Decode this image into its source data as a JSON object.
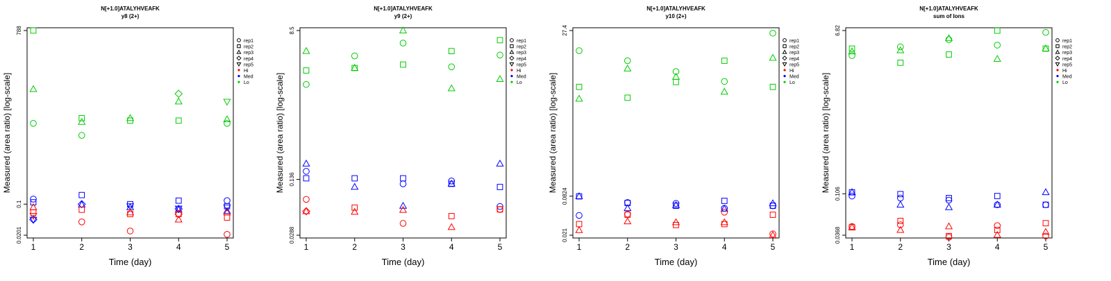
{
  "chart_data": [
    {
      "type": "scatter",
      "title": "N[+1.0]ATALYHVEAFK",
      "subtitle": "y8 (2+)",
      "xlabel": "Time (day)",
      "ylabel": "Measured (area ratio) [log-scale]",
      "x_ticks": [
        "1",
        "2",
        "3",
        "4",
        "5"
      ],
      "y_ticks": [
        {
          "value": 788,
          "label": "788"
        },
        {
          "value": 0.1,
          "label": "0.1"
        },
        {
          "value": 0.0201,
          "label": "0.0201"
        }
      ],
      "ylim": [
        0.0201,
        788
      ],
      "log_y": true,
      "series": [
        {
          "group": "Lo",
          "rep": "rep1",
          "points": [
            [
              1,
              6.5
            ],
            [
              2,
              3.5
            ],
            [
              5,
              6.5
            ]
          ]
        },
        {
          "group": "Lo",
          "rep": "rep2",
          "points": [
            [
              1,
              788
            ],
            [
              2,
              8.5
            ],
            [
              3,
              7.5
            ],
            [
              4,
              7.5
            ]
          ]
        },
        {
          "group": "Lo",
          "rep": "rep3",
          "points": [
            [
              1,
              38
            ],
            [
              2,
              7
            ],
            [
              3,
              8.5
            ],
            [
              4,
              20
            ],
            [
              5,
              8
            ]
          ]
        },
        {
          "group": "Lo",
          "rep": "rep4",
          "points": [
            [
              4,
              30
            ]
          ]
        },
        {
          "group": "Lo",
          "rep": "rep5",
          "points": [
            [
              5,
              20
            ]
          ]
        },
        {
          "group": "Med",
          "rep": "rep1",
          "points": [
            [
              1,
              0.13
            ],
            [
              5,
              0.12
            ]
          ]
        },
        {
          "group": "Med",
          "rep": "rep2",
          "points": [
            [
              1,
              0.11
            ],
            [
              2,
              0.16
            ],
            [
              3,
              0.1
            ],
            [
              4,
              0.12
            ],
            [
              5,
              0.09
            ]
          ]
        },
        {
          "group": "Med",
          "rep": "rep3",
          "points": [
            [
              2,
              0.097
            ],
            [
              3,
              0.085
            ],
            [
              4,
              0.075
            ],
            [
              5,
              0.07
            ]
          ]
        },
        {
          "group": "Med",
          "rep": "rep4",
          "points": [
            [
              1,
              0.045
            ],
            [
              2,
              0.1
            ],
            [
              4,
              0.078
            ]
          ]
        },
        {
          "group": "Med",
          "rep": "rep5",
          "points": [
            [
              1,
              0.045
            ],
            [
              3,
              0.09
            ],
            [
              4,
              0.08
            ],
            [
              5,
              0.085
            ]
          ]
        },
        {
          "group": "Hi",
          "rep": "rep1",
          "points": [
            [
              2,
              0.04
            ],
            [
              3,
              0.025
            ],
            [
              5,
              0.021
            ]
          ]
        },
        {
          "group": "Hi",
          "rep": "rep2",
          "points": [
            [
              1,
              0.065
            ],
            [
              2,
              0.075
            ],
            [
              3,
              0.06
            ],
            [
              4,
              0.06
            ],
            [
              5,
              0.05
            ]
          ]
        },
        {
          "group": "Hi",
          "rep": "rep3",
          "points": [
            [
              1,
              0.085
            ],
            [
              3,
              0.065
            ],
            [
              4,
              0.045
            ],
            [
              5,
              0.065
            ]
          ]
        },
        {
          "group": "Hi",
          "rep": "rep4",
          "points": [
            [
              4,
              0.06
            ]
          ]
        },
        {
          "group": "Hi",
          "rep": "rep5",
          "points": [
            [
              1,
              0.055
            ]
          ]
        }
      ]
    },
    {
      "type": "scatter",
      "title": "N[+1.0]ATALYHVEAFK",
      "subtitle": "y9 (2+)",
      "xlabel": "Time (day)",
      "ylabel": "Measured (area ratio) [log-scale]",
      "x_ticks": [
        "1",
        "2",
        "3",
        "4",
        "5"
      ],
      "y_ticks": [
        {
          "value": 8.5,
          "label": "8.5"
        },
        {
          "value": 0.136,
          "label": "0.136"
        },
        {
          "value": 0.0288,
          "label": "0.0288"
        }
      ],
      "ylim": [
        0.0288,
        8.5
      ],
      "log_y": true,
      "series": [
        {
          "group": "Lo",
          "rep": "rep1",
          "points": [
            [
              1,
              1.9
            ],
            [
              2,
              4.2
            ],
            [
              3,
              6.0
            ],
            [
              4,
              3.1
            ],
            [
              5,
              4.3
            ]
          ]
        },
        {
          "group": "Lo",
          "rep": "rep2",
          "points": [
            [
              1,
              2.8
            ],
            [
              2,
              3.0
            ],
            [
              3,
              3.3
            ],
            [
              4,
              4.8
            ],
            [
              5,
              6.5
            ]
          ]
        },
        {
          "group": "Lo",
          "rep": "rep3",
          "points": [
            [
              1,
              4.8
            ],
            [
              2,
              3.0
            ],
            [
              3,
              8.5
            ],
            [
              4,
              1.7
            ],
            [
              5,
              2.2
            ]
          ]
        },
        {
          "group": "Med",
          "rep": "rep1",
          "points": [
            [
              1,
              0.17
            ],
            [
              3,
              0.12
            ],
            [
              4,
              0.13
            ],
            [
              5,
              0.064
            ]
          ]
        },
        {
          "group": "Med",
          "rep": "rep2",
          "points": [
            [
              1,
              0.14
            ],
            [
              2,
              0.14
            ],
            [
              3,
              0.14
            ],
            [
              4,
              0.12
            ],
            [
              5,
              0.11
            ]
          ]
        },
        {
          "group": "Med",
          "rep": "rep3",
          "points": [
            [
              1,
              0.21
            ],
            [
              2,
              0.11
            ],
            [
              3,
              0.065
            ],
            [
              4,
              0.12
            ],
            [
              5,
              0.21
            ]
          ]
        },
        {
          "group": "Hi",
          "rep": "rep1",
          "points": [
            [
              1,
              0.078
            ],
            [
              3,
              0.04
            ],
            [
              5,
              0.059
            ]
          ]
        },
        {
          "group": "Hi",
          "rep": "rep2",
          "points": [
            [
              2,
              0.062
            ],
            [
              4,
              0.049
            ],
            [
              5,
              0.059
            ]
          ]
        },
        {
          "group": "Hi",
          "rep": "rep3",
          "points": [
            [
              1,
              0.056
            ],
            [
              2,
              0.055
            ],
            [
              3,
              0.058
            ],
            [
              4,
              0.036
            ]
          ]
        },
        {
          "group": "Hi",
          "rep": "rep4",
          "points": [
            [
              1,
              0.056
            ]
          ]
        }
      ]
    },
    {
      "type": "scatter",
      "title": "N[+1.0]ATALYHVEAFK",
      "subtitle": "y10 (2+)",
      "xlabel": "Time (day)",
      "ylabel": "Measured (area ratio) [log-scale]",
      "x_ticks": [
        "1",
        "2",
        "3",
        "4",
        "5"
      ],
      "y_ticks": [
        {
          "value": 27.4,
          "label": "27.4"
        },
        {
          "value": 0.0824,
          "label": "0.0824"
        },
        {
          "value": 0.021,
          "label": "0.021"
        }
      ],
      "ylim": [
        0.021,
        27.4
      ],
      "log_y": true,
      "series": [
        {
          "group": "Lo",
          "rep": "rep1",
          "points": [
            [
              1,
              13.5
            ],
            [
              2,
              9.5
            ],
            [
              3,
              6.5
            ],
            [
              4,
              4.6
            ],
            [
              5,
              25
            ]
          ]
        },
        {
          "group": "Lo",
          "rep": "rep2",
          "points": [
            [
              1,
              3.8
            ],
            [
              2,
              2.6
            ],
            [
              3,
              4.5
            ],
            [
              4,
              9.5
            ],
            [
              5,
              3.8
            ]
          ]
        },
        {
          "group": "Lo",
          "rep": "rep3",
          "points": [
            [
              1,
              2.5
            ],
            [
              2,
              7.2
            ],
            [
              3,
              5.4
            ],
            [
              4,
              3.2
            ],
            [
              5,
              10.5
            ]
          ]
        },
        {
          "group": "Med",
          "rep": "rep1",
          "points": [
            [
              1,
              0.042
            ],
            [
              2,
              0.066
            ],
            [
              3,
              0.064
            ],
            [
              4,
              0.054
            ],
            [
              5,
              0.059
            ]
          ]
        },
        {
          "group": "Med",
          "rep": "rep2",
          "points": [
            [
              1,
              0.082
            ],
            [
              2,
              0.065
            ],
            [
              3,
              0.059
            ],
            [
              4,
              0.07
            ],
            [
              5,
              0.059
            ]
          ]
        },
        {
          "group": "Med",
          "rep": "rep3",
          "points": [
            [
              1,
              0.082
            ],
            [
              2,
              0.054
            ],
            [
              3,
              0.06
            ],
            [
              4,
              0.053
            ],
            [
              5,
              0.064
            ]
          ]
        },
        {
          "group": "Hi",
          "rep": "rep1",
          "points": [
            [
              2,
              0.044
            ],
            [
              4,
              0.047
            ],
            [
              5,
              0.022
            ]
          ]
        },
        {
          "group": "Hi",
          "rep": "rep2",
          "points": [
            [
              1,
              0.031
            ],
            [
              2,
              0.043
            ],
            [
              3,
              0.03
            ],
            [
              4,
              0.031
            ],
            [
              5,
              0.043
            ]
          ]
        },
        {
          "group": "Hi",
          "rep": "rep3",
          "points": [
            [
              1,
              0.025
            ],
            [
              2,
              0.034
            ],
            [
              3,
              0.033
            ],
            [
              4,
              0.033
            ],
            [
              5,
              0.021
            ]
          ]
        }
      ]
    },
    {
      "type": "scatter",
      "title": "N[+1.0]ATALYHVEAFK",
      "subtitle": "sum of Ions",
      "xlabel": "Time (day)",
      "ylabel": "Measured (area ratio) [log-scale]",
      "x_ticks": [
        "1",
        "2",
        "3",
        "4",
        "5"
      ],
      "y_ticks": [
        {
          "value": 6.82,
          "label": "6.82"
        },
        {
          "value": 0.106,
          "label": "0.106"
        },
        {
          "value": 0.0368,
          "label": "0.0368"
        }
      ],
      "ylim": [
        0.0368,
        6.82
      ],
      "log_y": true,
      "series": [
        {
          "group": "Lo",
          "rep": "rep1",
          "points": [
            [
              1,
              3.6
            ],
            [
              2,
              4.5
            ],
            [
              3,
              5.4
            ],
            [
              4,
              4.7
            ],
            [
              5,
              6.5
            ]
          ]
        },
        {
          "group": "Lo",
          "rep": "rep2",
          "points": [
            [
              1,
              4.3
            ],
            [
              2,
              3.0
            ],
            [
              3,
              3.7
            ],
            [
              4,
              6.8
            ],
            [
              5,
              4.3
            ]
          ]
        },
        {
          "group": "Lo",
          "rep": "rep3",
          "points": [
            [
              1,
              4.0
            ],
            [
              2,
              4.1
            ],
            [
              3,
              5.6
            ],
            [
              4,
              3.3
            ],
            [
              5,
              4.3
            ]
          ]
        },
        {
          "group": "Med",
          "rep": "rep1",
          "points": [
            [
              1,
              0.1
            ],
            [
              2,
              0.095
            ],
            [
              3,
              0.09
            ],
            [
              4,
              0.08
            ],
            [
              5,
              0.08
            ]
          ]
        },
        {
          "group": "Med",
          "rep": "rep2",
          "points": [
            [
              1,
              0.11
            ],
            [
              2,
              0.105
            ],
            [
              3,
              0.095
            ],
            [
              4,
              0.1
            ],
            [
              5,
              0.08
            ]
          ]
        },
        {
          "group": "Med",
          "rep": "rep3",
          "points": [
            [
              1,
              0.11
            ],
            [
              2,
              0.08
            ],
            [
              3,
              0.075
            ],
            [
              4,
              0.08
            ],
            [
              5,
              0.11
            ]
          ]
        },
        {
          "group": "Hi",
          "rep": "rep1",
          "points": [
            [
              1,
              0.046
            ],
            [
              2,
              0.048
            ],
            [
              3,
              0.035
            ],
            [
              4,
              0.047
            ],
            [
              5,
              0.036
            ]
          ]
        },
        {
          "group": "Hi",
          "rep": "rep2",
          "points": [
            [
              1,
              0.045
            ],
            [
              2,
              0.053
            ],
            [
              3,
              0.036
            ],
            [
              4,
              0.042
            ],
            [
              5,
              0.05
            ]
          ]
        },
        {
          "group": "Hi",
          "rep": "rep3",
          "points": [
            [
              1,
              0.045
            ],
            [
              2,
              0.042
            ],
            [
              3,
              0.046
            ],
            [
              4,
              0.037
            ],
            [
              5,
              0.04
            ]
          ]
        }
      ]
    }
  ],
  "legend": {
    "position": "right",
    "entries": [
      {
        "label": "rep1",
        "marker": "circle"
      },
      {
        "label": "rep2",
        "marker": "square"
      },
      {
        "label": "rep3",
        "marker": "triangle-up"
      },
      {
        "label": "rep4",
        "marker": "diamond"
      },
      {
        "label": "rep5",
        "marker": "triangle-down"
      },
      {
        "label": "Hi",
        "marker": "dot",
        "color": "#ff0000"
      },
      {
        "label": "Med",
        "marker": "dot",
        "color": "#0000ff"
      },
      {
        "label": "Lo",
        "marker": "dot",
        "color": "#00cc00"
      }
    ]
  },
  "colors": {
    "Hi": "#ff0000",
    "Med": "#0000ff",
    "Lo": "#00cc00"
  }
}
